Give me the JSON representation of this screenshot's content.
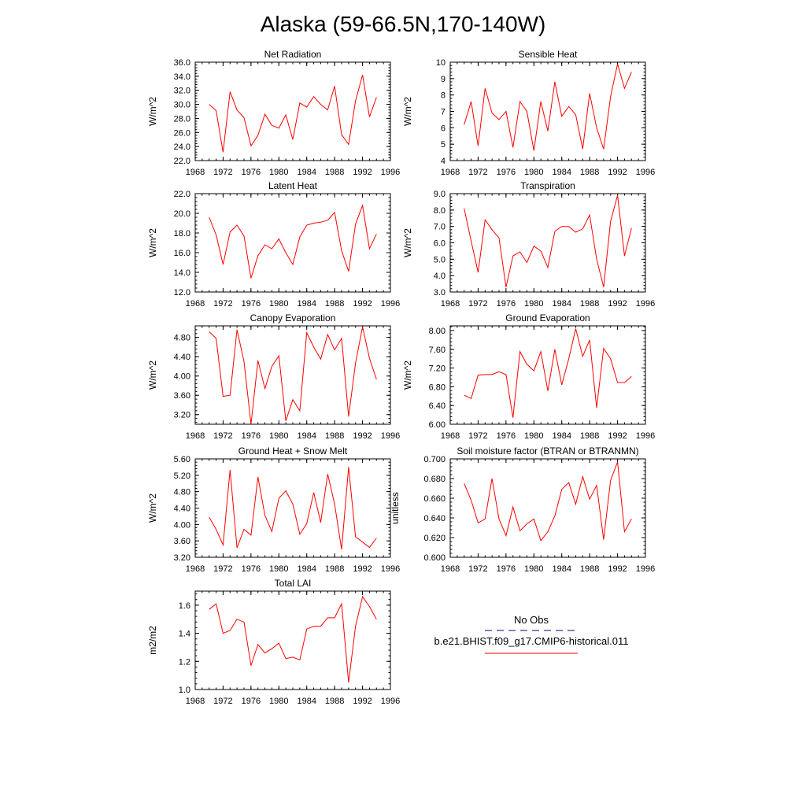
{
  "figure": {
    "title": "Alaska (59-66.5N,170-140W)"
  },
  "chart_data": [
    {
      "type": "line",
      "title": "Net Radiation",
      "xlabel": "",
      "ylabel": "W/m^2",
      "xlim": [
        1968,
        1996
      ],
      "xticks": [
        "1968",
        "1972",
        "1976",
        "1980",
        "1984",
        "1988",
        "1992",
        "1996"
      ],
      "ylim": [
        22.0,
        36.0
      ],
      "yticks": [
        "22.0",
        "24.0",
        "26.0",
        "28.0",
        "30.0",
        "32.0",
        "34.0",
        "36.0"
      ],
      "series": [
        {
          "color": "#ff0000",
          "x": [
            1970,
            1971,
            1972,
            1973,
            1974,
            1975,
            1976,
            1977,
            1978,
            1979,
            1980,
            1981,
            1982,
            1983,
            1984,
            1985,
            1986,
            1987,
            1988,
            1989,
            1990,
            1991,
            1992,
            1993,
            1994
          ],
          "values": [
            30.0,
            29.1,
            23.2,
            31.8,
            29.2,
            28.1,
            24.1,
            25.6,
            28.6,
            27.0,
            26.6,
            28.5,
            25.0,
            30.2,
            29.6,
            31.1,
            30.0,
            29.2,
            32.6,
            25.7,
            24.3,
            30.5,
            34.2,
            28.2,
            31.0
          ]
        }
      ]
    },
    {
      "type": "line",
      "title": "Sensible Heat",
      "xlabel": "",
      "ylabel": "W/m^2",
      "xlim": [
        1968,
        1996
      ],
      "xticks": [
        "1968",
        "1972",
        "1976",
        "1980",
        "1984",
        "1988",
        "1992",
        "1996"
      ],
      "ylim": [
        4,
        10
      ],
      "yticks": [
        "4",
        "5",
        "6",
        "7",
        "8",
        "9",
        "10"
      ],
      "series": [
        {
          "color": "#ff0000",
          "x": [
            1970,
            1971,
            1972,
            1973,
            1974,
            1975,
            1976,
            1977,
            1978,
            1979,
            1980,
            1981,
            1982,
            1983,
            1984,
            1985,
            1986,
            1987,
            1988,
            1989,
            1990,
            1991,
            1992,
            1993,
            1994
          ],
          "values": [
            6.2,
            7.6,
            4.9,
            8.4,
            6.9,
            6.5,
            7.0,
            4.8,
            7.6,
            7.0,
            4.6,
            7.6,
            5.8,
            8.8,
            6.7,
            7.3,
            6.8,
            4.7,
            8.1,
            6.0,
            4.7,
            7.9,
            9.9,
            8.4,
            9.4
          ]
        }
      ]
    },
    {
      "type": "line",
      "title": "Latent Heat",
      "xlabel": "",
      "ylabel": "W/m^2",
      "xlim": [
        1968,
        1996
      ],
      "xticks": [
        "1968",
        "1972",
        "1976",
        "1980",
        "1984",
        "1988",
        "1992",
        "1996"
      ],
      "ylim": [
        12.0,
        22.0
      ],
      "yticks": [
        "12.0",
        "14.0",
        "16.0",
        "18.0",
        "20.0",
        "22.0"
      ],
      "series": [
        {
          "color": "#ff0000",
          "x": [
            1970,
            1971,
            1972,
            1973,
            1974,
            1975,
            1976,
            1977,
            1978,
            1979,
            1980,
            1981,
            1982,
            1983,
            1984,
            1985,
            1986,
            1987,
            1988,
            1989,
            1990,
            1991,
            1992,
            1993,
            1994
          ],
          "values": [
            19.6,
            17.8,
            14.8,
            18.1,
            18.8,
            17.7,
            13.4,
            15.7,
            16.8,
            16.4,
            17.4,
            16.0,
            14.8,
            17.6,
            18.8,
            19.0,
            19.1,
            19.3,
            20.1,
            16.2,
            14.1,
            18.9,
            20.8,
            16.4,
            17.9
          ]
        }
      ]
    },
    {
      "type": "line",
      "title": "Transpiration",
      "xlabel": "",
      "ylabel": "W/m^2",
      "xlim": [
        1968,
        1996
      ],
      "xticks": [
        "1968",
        "1972",
        "1976",
        "1980",
        "1984",
        "1988",
        "1992",
        "1996"
      ],
      "ylim": [
        3.0,
        9.0
      ],
      "yticks": [
        "3.0",
        "4.0",
        "5.0",
        "6.0",
        "7.0",
        "8.0",
        "9.0"
      ],
      "series": [
        {
          "color": "#ff0000",
          "x": [
            1970,
            1971,
            1972,
            1973,
            1974,
            1975,
            1976,
            1977,
            1978,
            1979,
            1980,
            1981,
            1982,
            1983,
            1984,
            1985,
            1986,
            1987,
            1988,
            1989,
            1990,
            1991,
            1992,
            1993,
            1994
          ],
          "values": [
            8.1,
            6.1,
            4.2,
            7.4,
            6.8,
            6.3,
            3.3,
            5.2,
            5.45,
            4.8,
            5.8,
            5.5,
            4.5,
            6.7,
            7.0,
            7.0,
            6.65,
            6.85,
            7.7,
            5.0,
            3.3,
            7.3,
            8.9,
            5.2,
            6.9
          ]
        }
      ]
    },
    {
      "type": "line",
      "title": "Canopy Evaporation",
      "xlabel": "",
      "ylabel": "W/m^2",
      "xlim": [
        1968,
        1996
      ],
      "xticks": [
        "1968",
        "1972",
        "1976",
        "1980",
        "1984",
        "1988",
        "1992",
        "1996"
      ],
      "ylim": [
        3.0,
        5.04
      ],
      "yticks": [
        "3.20",
        "3.60",
        "4.00",
        "4.40",
        "4.80"
      ],
      "series": [
        {
          "color": "#ff0000",
          "x": [
            1970,
            1971,
            1972,
            1973,
            1974,
            1975,
            1976,
            1977,
            1978,
            1979,
            1980,
            1981,
            1982,
            1983,
            1984,
            1985,
            1986,
            1987,
            1988,
            1989,
            1990,
            1991,
            1992,
            1993,
            1994
          ],
          "values": [
            4.92,
            4.78,
            3.58,
            3.6,
            4.96,
            4.3,
            3.0,
            4.32,
            3.74,
            4.2,
            4.42,
            3.07,
            3.51,
            3.28,
            4.9,
            4.6,
            4.35,
            4.86,
            4.54,
            4.78,
            3.16,
            4.27,
            5.02,
            4.37,
            3.93
          ]
        }
      ]
    },
    {
      "type": "line",
      "title": "Ground Evaporation",
      "xlabel": "",
      "ylabel": "W/m^2",
      "xlim": [
        1968,
        1996
      ],
      "xticks": [
        "1968",
        "1972",
        "1976",
        "1980",
        "1984",
        "1988",
        "1992",
        "1996"
      ],
      "ylim": [
        6.0,
        8.1
      ],
      "yticks": [
        "6.00",
        "6.40",
        "6.80",
        "7.20",
        "7.60",
        "8.00"
      ],
      "series": [
        {
          "color": "#ff0000",
          "x": [
            1970,
            1971,
            1972,
            1973,
            1974,
            1975,
            1976,
            1977,
            1978,
            1979,
            1980,
            1981,
            1982,
            1983,
            1984,
            1985,
            1986,
            1987,
            1988,
            1989,
            1990,
            1991,
            1992,
            1993,
            1994
          ],
          "values": [
            6.62,
            6.55,
            7.05,
            7.06,
            7.06,
            7.12,
            7.06,
            6.14,
            7.55,
            7.28,
            7.14,
            7.55,
            6.71,
            7.6,
            6.84,
            7.4,
            8.04,
            7.45,
            7.8,
            6.35,
            7.62,
            7.4,
            6.89,
            6.89,
            7.02
          ]
        }
      ]
    },
    {
      "type": "line",
      "title": "Ground Heat + Snow Melt",
      "xlabel": "",
      "ylabel": "W/m^2",
      "xlim": [
        1968,
        1996
      ],
      "xticks": [
        "1968",
        "1972",
        "1976",
        "1980",
        "1984",
        "1988",
        "1992",
        "1996"
      ],
      "ylim": [
        3.2,
        5.6
      ],
      "yticks": [
        "3.20",
        "3.60",
        "4.00",
        "4.40",
        "4.80",
        "5.20",
        "5.60"
      ],
      "series": [
        {
          "color": "#ff0000",
          "x": [
            1970,
            1971,
            1972,
            1973,
            1974,
            1975,
            1976,
            1977,
            1978,
            1979,
            1980,
            1981,
            1982,
            1983,
            1984,
            1985,
            1986,
            1987,
            1988,
            1989,
            1990,
            1991,
            1992,
            1993,
            1994
          ],
          "values": [
            4.18,
            3.88,
            3.5,
            5.33,
            3.43,
            3.88,
            3.74,
            5.16,
            4.22,
            3.83,
            4.64,
            4.82,
            4.5,
            3.76,
            4.02,
            4.78,
            4.05,
            5.23,
            4.5,
            3.39,
            5.4,
            3.7,
            3.57,
            3.44,
            3.67
          ]
        }
      ]
    },
    {
      "type": "line",
      "title": "Soil moisture factor (BTRAN or BTRANMN)",
      "xlabel": "",
      "ylabel": "unitless",
      "xlim": [
        1968,
        1996
      ],
      "xticks": [
        "1968",
        "1972",
        "1976",
        "1980",
        "1984",
        "1988",
        "1992",
        "1996"
      ],
      "ylim": [
        0.6,
        0.7
      ],
      "yticks": [
        "0.600",
        "0.620",
        "0.640",
        "0.660",
        "0.680",
        "0.700"
      ],
      "series": [
        {
          "color": "#ff0000",
          "x": [
            1970,
            1971,
            1972,
            1973,
            1974,
            1975,
            1976,
            1977,
            1978,
            1979,
            1980,
            1981,
            1982,
            1983,
            1984,
            1985,
            1986,
            1987,
            1988,
            1989,
            1990,
            1991,
            1992,
            1993,
            1994
          ],
          "values": [
            0.675,
            0.658,
            0.635,
            0.639,
            0.68,
            0.639,
            0.622,
            0.651,
            0.627,
            0.634,
            0.639,
            0.617,
            0.626,
            0.642,
            0.669,
            0.676,
            0.654,
            0.682,
            0.659,
            0.673,
            0.618,
            0.678,
            0.697,
            0.626,
            0.639
          ]
        }
      ]
    },
    {
      "type": "line",
      "title": "Total LAI",
      "xlabel": "",
      "ylabel": "m2/m2",
      "xlim": [
        1968,
        1996
      ],
      "xticks": [
        "1968",
        "1972",
        "1976",
        "1980",
        "1984",
        "1988",
        "1992",
        "1996"
      ],
      "ylim": [
        1.0,
        1.7
      ],
      "yticks": [
        "1.0",
        "1.2",
        "1.4",
        "1.6"
      ],
      "series": [
        {
          "color": "#ff0000",
          "x": [
            1970,
            1971,
            1972,
            1973,
            1974,
            1975,
            1976,
            1977,
            1978,
            1979,
            1980,
            1981,
            1982,
            1983,
            1984,
            1985,
            1986,
            1987,
            1988,
            1989,
            1990,
            1991,
            1992,
            1993,
            1994
          ],
          "values": [
            1.57,
            1.61,
            1.4,
            1.42,
            1.5,
            1.48,
            1.17,
            1.32,
            1.26,
            1.29,
            1.33,
            1.22,
            1.23,
            1.21,
            1.43,
            1.45,
            1.45,
            1.51,
            1.51,
            1.61,
            1.05,
            1.45,
            1.66,
            1.59,
            1.5
          ]
        }
      ]
    }
  ],
  "legend": {
    "entries": [
      {
        "label": "No Obs",
        "color": "#00008b",
        "style": "dashed"
      },
      {
        "label": "b.e21.BHIST.f09_g17.CMIP6-historical.011",
        "color": "#ff0000",
        "style": "solid"
      }
    ]
  }
}
